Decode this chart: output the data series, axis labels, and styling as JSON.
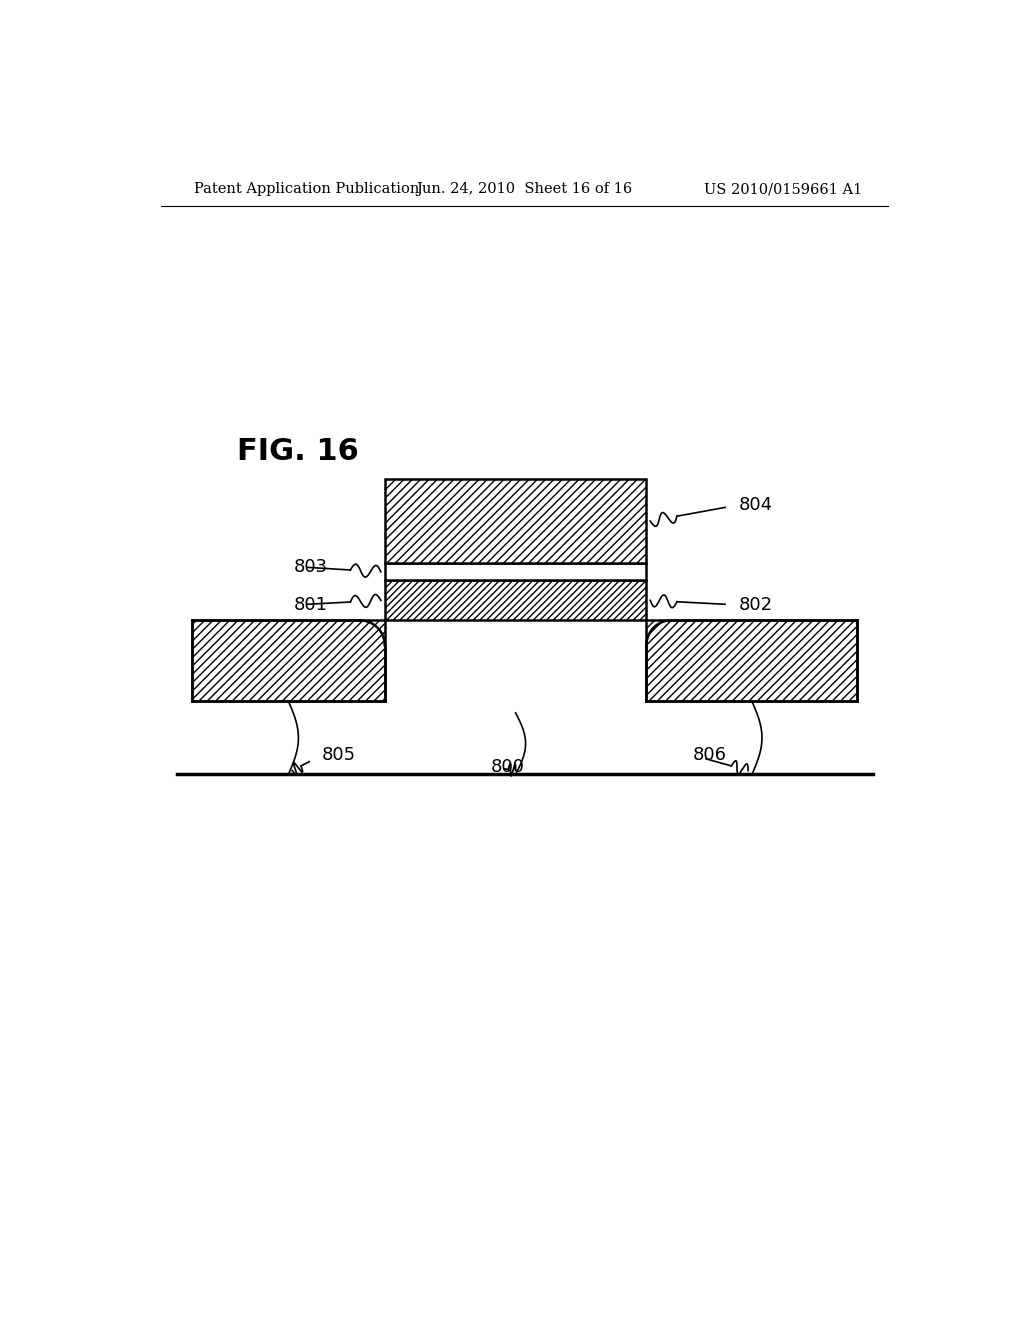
{
  "title": "FIG. 16",
  "header_left": "Patent Application Publication",
  "header_center": "Jun. 24, 2010  Sheet 16 of 16",
  "header_right": "US 2010/0159661 A1",
  "background_color": "#ffffff",
  "line_color": "#000000",
  "header_fontsize": 10.5,
  "fig_title_fontsize": 22,
  "label_fontsize": 13
}
